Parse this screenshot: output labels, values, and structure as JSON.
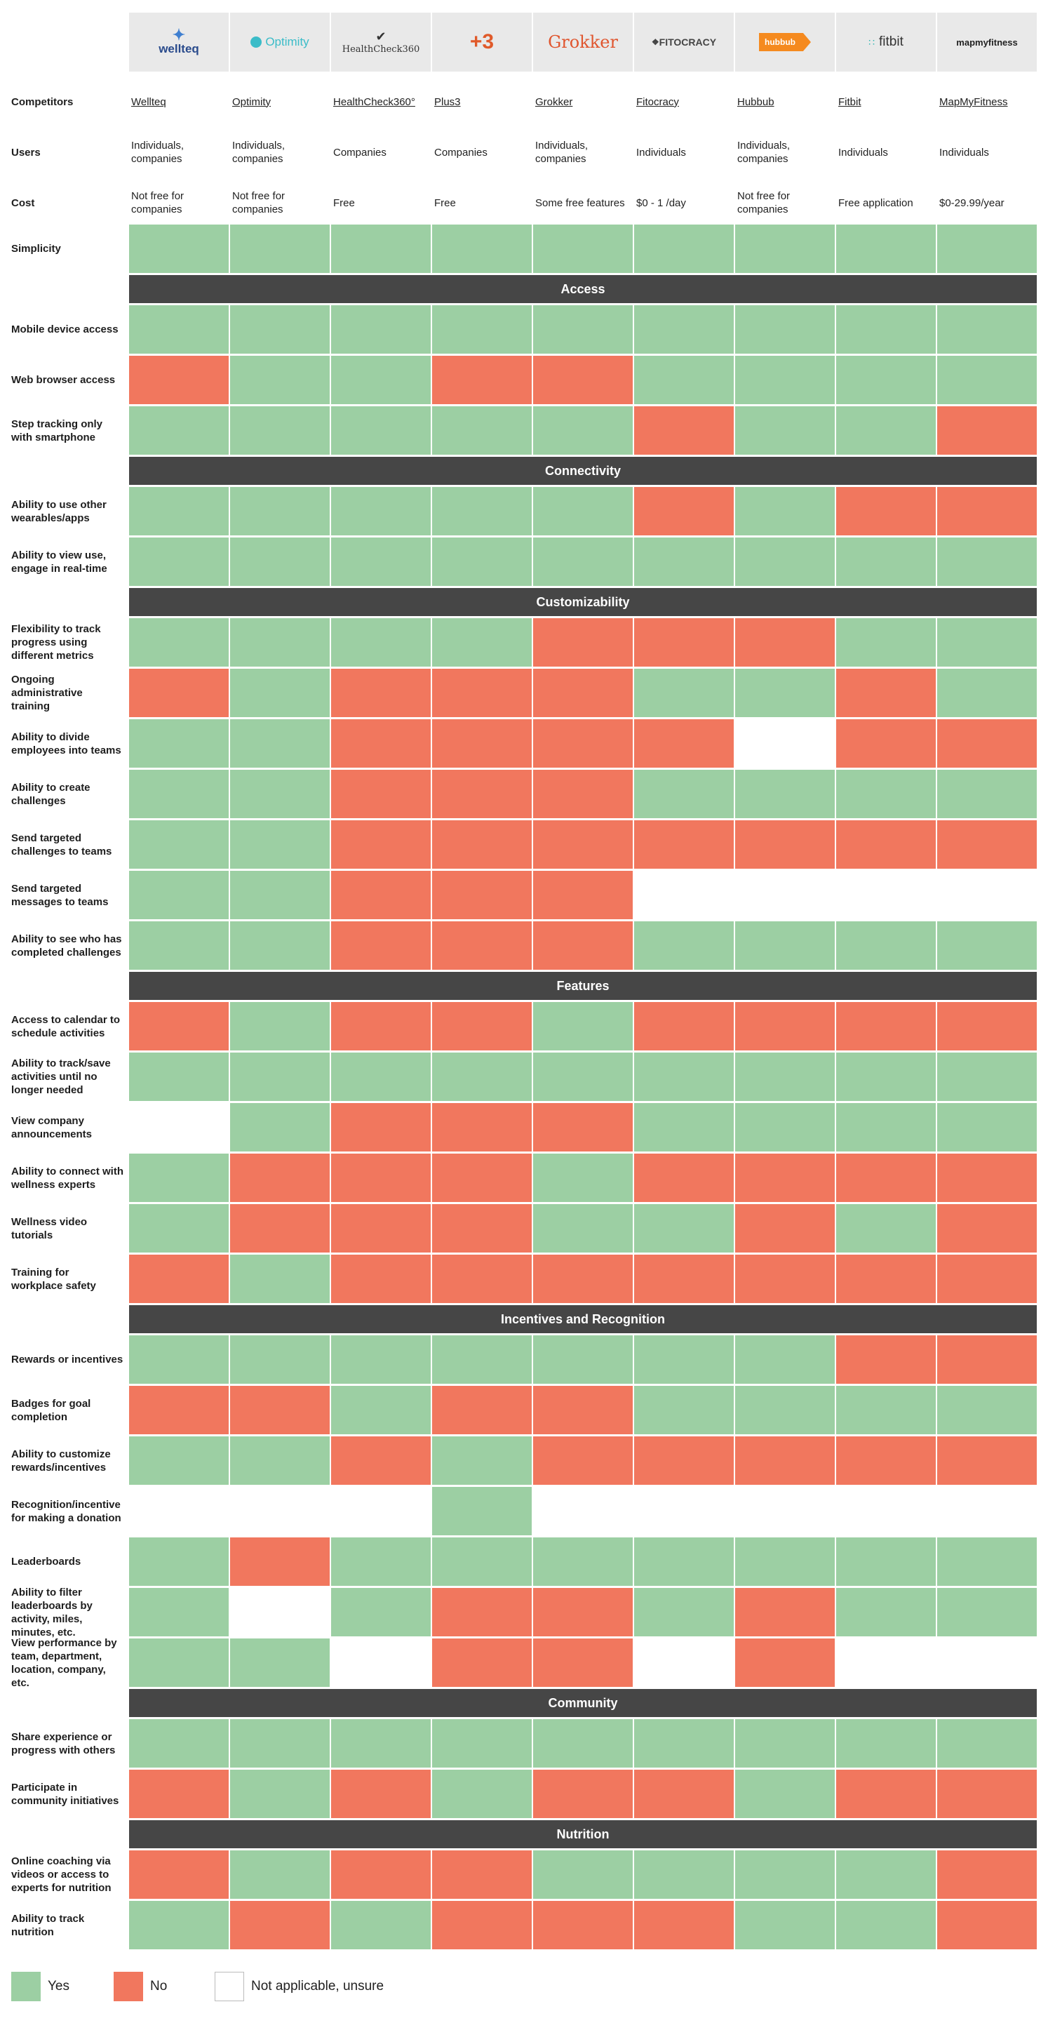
{
  "competitors": [
    {
      "name": "Wellteq",
      "logo_text": "wellteq",
      "logo_icon": "wellteq-network-icon",
      "users": "Individuals, companies",
      "cost": "Not free for companies"
    },
    {
      "name": "Optimity",
      "logo_text": "Optimity",
      "logo_icon": "optimity-circle-icon",
      "users": "Individuals, companies",
      "cost": "Not free for companies"
    },
    {
      "name": "HealthCheck360°",
      "logo_text": "HealthCheck360",
      "logo_icon": "checkmark-icon",
      "users": "Companies",
      "cost": "Free"
    },
    {
      "name": "Plus3",
      "logo_text": "+3",
      "logo_icon": "plus3-mark-icon",
      "users": "Companies",
      "cost": "Free"
    },
    {
      "name": "Grokker",
      "logo_text": "Grokker",
      "logo_icon": "grokker-wordmark-icon",
      "users": "Individuals, companies",
      "cost": "Some free features"
    },
    {
      "name": "Fitocracy",
      "logo_text": "FITOCRACY",
      "logo_icon": "fitocracy-mark-icon",
      "users": "Individuals",
      "cost": "$0 - 1 /day"
    },
    {
      "name": "Hubbub",
      "logo_text": "hubbub",
      "logo_icon": "hubbub-flag-icon",
      "users": "Individuals, companies",
      "cost": "Not free for companies"
    },
    {
      "name": "Fitbit",
      "logo_text": "fitbit",
      "logo_icon": "fitbit-dots-icon",
      "users": "Individuals",
      "cost": "Free application"
    },
    {
      "name": "MapMyFitness",
      "logo_text": "mapmyfitness",
      "logo_icon": "mapmy-mark-icon",
      "users": "Individuals",
      "cost": "$0-29.99/year"
    }
  ],
  "labels": {
    "competitors": "Competitors",
    "users": "Users",
    "cost": "Cost"
  },
  "rows": [
    {
      "type": "feature",
      "label": "Simplicity",
      "values": [
        "Yes",
        "Yes",
        "Yes",
        "Yes",
        "Yes",
        "Yes",
        "Yes",
        "Yes",
        "Yes"
      ]
    },
    {
      "type": "section",
      "label": "Access"
    },
    {
      "type": "feature",
      "label": "Mobile device access",
      "values": [
        "Yes",
        "Yes",
        "Yes",
        "Yes",
        "Yes",
        "Yes",
        "Yes",
        "Yes",
        "Yes"
      ]
    },
    {
      "type": "feature",
      "label": "Web browser access",
      "values": [
        "No",
        "Yes",
        "Yes",
        "No",
        "No",
        "Yes",
        "Yes",
        "Yes",
        "Yes"
      ]
    },
    {
      "type": "feature",
      "label": "Step tracking only with smartphone",
      "values": [
        "Yes",
        "Yes",
        "Yes",
        "Yes",
        "Yes",
        "No",
        "Yes",
        "Yes",
        "No"
      ]
    },
    {
      "type": "section",
      "label": "Connectivity"
    },
    {
      "type": "feature",
      "label": "Ability to use other wearables/apps",
      "values": [
        "Yes",
        "Yes",
        "Yes",
        "Yes",
        "Yes",
        "No",
        "Yes",
        "No",
        "No"
      ]
    },
    {
      "type": "feature",
      "label": "Ability to view use, engage in real-time",
      "values": [
        "Yes",
        "Yes",
        "Yes",
        "Yes",
        "Yes",
        "Yes",
        "Yes",
        "Yes",
        "Yes"
      ]
    },
    {
      "type": "section",
      "label": "Customizability"
    },
    {
      "type": "feature",
      "label": "Flexibility to track progress using different metrics",
      "values": [
        "Yes",
        "Yes",
        "Yes",
        "Yes",
        "No",
        "No",
        "No",
        "Yes",
        "Yes"
      ]
    },
    {
      "type": "feature",
      "label": "Ongoing administrative training",
      "values": [
        "No",
        "Yes",
        "No",
        "No",
        "No",
        "Yes",
        "Yes",
        "No",
        "Yes"
      ]
    },
    {
      "type": "feature",
      "label": "Ability to divide employees into teams",
      "values": [
        "Yes",
        "Yes",
        "No",
        "No",
        "No",
        "No",
        "Not applicable, unsure",
        "No",
        "No"
      ]
    },
    {
      "type": "feature",
      "label": "Ability to create challenges",
      "values": [
        "Yes",
        "Yes",
        "No",
        "No",
        "No",
        "Yes",
        "Yes",
        "Yes",
        "Yes"
      ]
    },
    {
      "type": "feature",
      "label": "Send targeted challenges to teams",
      "values": [
        "Yes",
        "Yes",
        "No",
        "No",
        "No",
        "No",
        "No",
        "No",
        "No"
      ]
    },
    {
      "type": "feature",
      "label": "Send targeted messages to teams",
      "values": [
        "Yes",
        "Yes",
        "No",
        "No",
        "No",
        "Not applicable, unsure",
        "Not applicable, unsure",
        "Not applicable, unsure",
        "Not applicable, unsure"
      ]
    },
    {
      "type": "feature",
      "label": "Ability to see who has completed challenges",
      "values": [
        "Yes",
        "Yes",
        "No",
        "No",
        "No",
        "Yes",
        "Yes",
        "Yes",
        "Yes"
      ]
    },
    {
      "type": "section",
      "label": "Features"
    },
    {
      "type": "feature",
      "label": "Access to calendar to schedule activities",
      "values": [
        "No",
        "Yes",
        "No",
        "No",
        "Yes",
        "No",
        "No",
        "No",
        "No"
      ]
    },
    {
      "type": "feature",
      "label": "Ability to track/save activities until no longer needed",
      "values": [
        "Yes",
        "Yes",
        "Yes",
        "Yes",
        "Yes",
        "Yes",
        "Yes",
        "Yes",
        "Yes"
      ]
    },
    {
      "type": "feature",
      "label": "View company announcements",
      "values": [
        "Not applicable, unsure",
        "Yes",
        "No",
        "No",
        "No",
        "Yes",
        "Yes",
        "Yes",
        "Yes"
      ]
    },
    {
      "type": "feature",
      "label": "Ability to connect with wellness experts",
      "values": [
        "Yes",
        "No",
        "No",
        "No",
        "Yes",
        "No",
        "No",
        "No",
        "No"
      ]
    },
    {
      "type": "feature",
      "label": "Wellness video tutorials",
      "values": [
        "Yes",
        "No",
        "No",
        "No",
        "Yes",
        "Yes",
        "No",
        "Yes",
        "No"
      ]
    },
    {
      "type": "feature",
      "label": "Training for workplace safety",
      "values": [
        "No",
        "Yes",
        "No",
        "No",
        "No",
        "No",
        "No",
        "No",
        "No"
      ]
    },
    {
      "type": "section",
      "label": "Incentives and Recognition"
    },
    {
      "type": "feature",
      "label": "Rewards or incentives",
      "values": [
        "Yes",
        "Yes",
        "Yes",
        "Yes",
        "Yes",
        "Yes",
        "Yes",
        "No",
        "No"
      ]
    },
    {
      "type": "feature",
      "label": "Badges for goal completion",
      "values": [
        "No",
        "No",
        "Yes",
        "No",
        "No",
        "Yes",
        "Yes",
        "Yes",
        "Yes"
      ]
    },
    {
      "type": "feature",
      "label": "Ability to customize rewards/incentives",
      "values": [
        "Yes",
        "Yes",
        "No",
        "Yes",
        "No",
        "No",
        "No",
        "No",
        "No"
      ]
    },
    {
      "type": "feature",
      "label": "Recognition/incentive for making a donation",
      "values": [
        "Not applicable, unsure",
        "Not applicable, unsure",
        "Not applicable, unsure",
        "Yes",
        "Not applicable, unsure",
        "Not applicable, unsure",
        "Not applicable, unsure",
        "Not applicable, unsure",
        "Not applicable, unsure"
      ]
    },
    {
      "type": "feature",
      "label": "Leaderboards",
      "values": [
        "Yes",
        "No",
        "Yes",
        "Yes",
        "Yes",
        "Yes",
        "Yes",
        "Yes",
        "Yes"
      ]
    },
    {
      "type": "feature",
      "label": "Ability to filter leaderboards by activity, miles, minutes, etc.",
      "values": [
        "Yes",
        "Not applicable, unsure",
        "Yes",
        "No",
        "No",
        "Yes",
        "No",
        "Yes",
        "Yes"
      ]
    },
    {
      "type": "feature",
      "label": "View performance by team, department, location, company, etc.",
      "values": [
        "Yes",
        "Yes",
        "Not applicable, unsure",
        "No",
        "No",
        "Not applicable, unsure",
        "No",
        "Not applicable, unsure",
        "Not applicable, unsure"
      ]
    },
    {
      "type": "section",
      "label": "Community"
    },
    {
      "type": "feature",
      "label": "Share experience or progress with others",
      "values": [
        "Yes",
        "Yes",
        "Yes",
        "Yes",
        "Yes",
        "Yes",
        "Yes",
        "Yes",
        "Yes"
      ]
    },
    {
      "type": "feature",
      "label": "Participate in community initiatives",
      "values": [
        "No",
        "Yes",
        "No",
        "Yes",
        "No",
        "No",
        "Yes",
        "No",
        "No"
      ]
    },
    {
      "type": "section",
      "label": "Nutrition"
    },
    {
      "type": "feature",
      "label": "Online coaching via videos or access to experts for nutrition",
      "values": [
        "No",
        "Yes",
        "No",
        "No",
        "Yes",
        "Yes",
        "Yes",
        "Yes",
        "No"
      ]
    },
    {
      "type": "feature",
      "label": "Ability to track nutrition",
      "values": [
        "Yes",
        "No",
        "Yes",
        "No",
        "No",
        "No",
        "Yes",
        "Yes",
        "No"
      ]
    }
  ],
  "legend": [
    {
      "key": "Yes",
      "label": "Yes",
      "color": "#9ccfa3"
    },
    {
      "key": "No",
      "label": "No",
      "color": "#f1775e"
    },
    {
      "key": "Not applicable, unsure",
      "label": "Not applicable, unsure",
      "color": "#ffffff"
    }
  ],
  "colors": {
    "yes": "#9ccfa3",
    "no": "#f1775e",
    "na": "#ffffff",
    "section_bar": "#464646",
    "logo_bg": "#e9e9e9"
  }
}
